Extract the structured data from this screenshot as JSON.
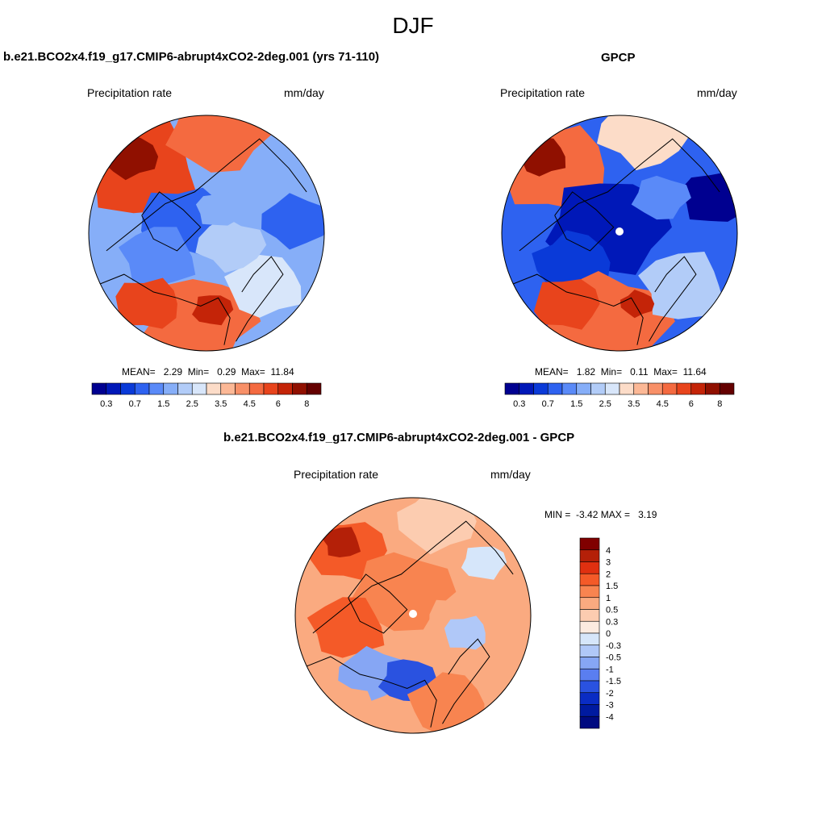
{
  "figure": {
    "title": "DJF",
    "panel1": {
      "title": "b.e21.BCO2x4.f19_g17.CMIP6-abrupt4xCO2-2deg.001 (yrs 71-110)",
      "left_label": "Precipitation rate",
      "right_label": "mm/day",
      "stats": {
        "mean_label": "MEAN=",
        "mean": "2.29",
        "min_label": "Min=",
        "min": "0.29",
        "max_label": "Max=",
        "max": "11.84"
      }
    },
    "panel2": {
      "title": "GPCP",
      "left_label": "Precipitation rate",
      "right_label": "mm/day",
      "stats": {
        "mean_label": "MEAN=",
        "mean": "1.82",
        "min_label": "Min=",
        "min": "0.11",
        "max_label": "Max=",
        "max": "11.64"
      }
    },
    "panel3": {
      "title": "b.e21.BCO2x4.f19_g17.CMIP6-abrupt4xCO2-2deg.001 - GPCP",
      "left_label": "Precipitation rate",
      "right_label": "mm/day",
      "stats": {
        "min_label": "MIN =",
        "min": "-3.42",
        "max_label": "MAX =",
        "max": "3.19"
      }
    }
  },
  "chart_data": [
    {
      "type": "heatmap",
      "projection": "north-polar-stereographic",
      "title": "b.e21.BCO2x4.f19_g17.CMIP6-abrupt4xCO2-2deg.001 (yrs 71-110)",
      "variable": "Precipitation rate",
      "units": "mm/day",
      "mean": 2.29,
      "min": 0.29,
      "max": 11.84,
      "colorbar": {
        "orientation": "horizontal",
        "levels": [
          0.3,
          0.5,
          0.7,
          1,
          1.5,
          2,
          2.5,
          3,
          3.5,
          4,
          4.5,
          5,
          6,
          7,
          8
        ],
        "tick_labels": [
          "0.3",
          "0.7",
          "1.5",
          "2.5",
          "3.5",
          "4.5",
          "6",
          "8"
        ],
        "colors": [
          "#000090",
          "#0018b8",
          "#0a3ad8",
          "#2e62f0",
          "#5a8af8",
          "#86aef8",
          "#b2ccf8",
          "#d8e6fa",
          "#fcdcc8",
          "#fcb896",
          "#f89068",
          "#f46a40",
          "#e8441c",
          "#c42408",
          "#901000",
          "#640000"
        ]
      }
    },
    {
      "type": "heatmap",
      "projection": "north-polar-stereographic",
      "title": "GPCP",
      "variable": "Precipitation rate",
      "units": "mm/day",
      "mean": 1.82,
      "min": 0.11,
      "max": 11.64,
      "colorbar": {
        "orientation": "horizontal",
        "levels": [
          0.3,
          0.5,
          0.7,
          1,
          1.5,
          2,
          2.5,
          3,
          3.5,
          4,
          4.5,
          5,
          6,
          7,
          8
        ],
        "tick_labels": [
          "0.3",
          "0.7",
          "1.5",
          "2.5",
          "3.5",
          "4.5",
          "6",
          "8"
        ],
        "colors": [
          "#000090",
          "#0018b8",
          "#0a3ad8",
          "#2e62f0",
          "#5a8af8",
          "#86aef8",
          "#b2ccf8",
          "#d8e6fa",
          "#fcdcc8",
          "#fcb896",
          "#f89068",
          "#f46a40",
          "#e8441c",
          "#c42408",
          "#901000",
          "#640000"
        ]
      }
    },
    {
      "type": "heatmap",
      "projection": "north-polar-stereographic",
      "title": "b.e21.BCO2x4.f19_g17.CMIP6-abrupt4xCO2-2deg.001 - GPCP",
      "variable": "Precipitation rate",
      "units": "mm/day",
      "min": -3.42,
      "max": 3.19,
      "colorbar": {
        "orientation": "vertical",
        "levels": [
          4,
          3,
          2,
          1.5,
          1,
          0.5,
          0.3,
          0,
          -0.3,
          -0.5,
          -1,
          -1.5,
          -2,
          -3,
          -4
        ],
        "tick_labels": [
          "4",
          "3",
          "2",
          "1.5",
          "1",
          "0.5",
          "0.3",
          "0",
          "-0.3",
          "-0.5",
          "-1",
          "-1.5",
          "-2",
          "-3",
          "-4"
        ],
        "colors": [
          "#800000",
          "#b42008",
          "#e03010",
          "#f45a28",
          "#f88450",
          "#faaa80",
          "#fcccb0",
          "#fcebe0",
          "#d6e6fa",
          "#b0c8f8",
          "#86a6f4",
          "#5a7ef0",
          "#2a52e0",
          "#0a2cc4",
          "#001aa0",
          "#000a80"
        ]
      }
    }
  ]
}
